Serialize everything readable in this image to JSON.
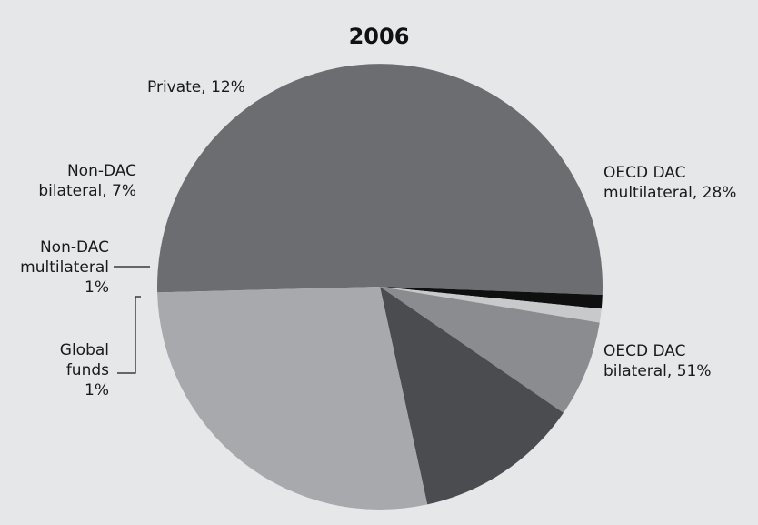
{
  "chart_data": {
    "type": "pie",
    "title": "2006",
    "slices": [
      {
        "key": "oecd_dac_bilateral",
        "label_lines": [
          "OECD DAC",
          "bilateral, 51%"
        ],
        "value": 51,
        "color": "#6c6d71"
      },
      {
        "key": "global_funds",
        "label_lines": [
          "Global",
          "funds",
          "1%"
        ],
        "value": 1,
        "color": "#0f0f0f"
      },
      {
        "key": "non_dac_multilateral",
        "label_lines": [
          "Non-DAC",
          "multilateral",
          "1%"
        ],
        "value": 1,
        "color": "#c8c9cb"
      },
      {
        "key": "non_dac_bilateral",
        "label_lines": [
          "Non-DAC",
          "bilateral, 7%"
        ],
        "value": 7,
        "color": "#8b8c8f"
      },
      {
        "key": "private",
        "label_lines": [
          "Private, 12%"
        ],
        "value": 12,
        "color": "#4b4c4f"
      },
      {
        "key": "oecd_dac_multilateral",
        "label_lines": [
          "OECD DAC",
          "multilateral, 28%"
        ],
        "value": 28,
        "color": "#a8a9ac"
      }
    ]
  }
}
